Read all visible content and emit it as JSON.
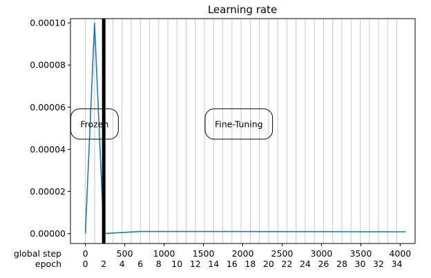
{
  "chart_data": {
    "type": "line",
    "title": "Learning rate",
    "xlabel": "",
    "ylabel": "",
    "x_tick_row_label": "global step",
    "epoch_row_label": "epoch",
    "xlim": [
      -190,
      4190
    ],
    "ylim": [
      -4.7e-06,
      0.000102
    ],
    "x_ticks": [
      0,
      500,
      1000,
      1500,
      2000,
      2500,
      3000,
      3500,
      4000
    ],
    "y_ticks": [
      0,
      2e-05,
      4e-05,
      6e-05,
      8e-05,
      0.0001
    ],
    "y_tick_labels": [
      "0.00000",
      "0.00002",
      "0.00004",
      "0.00006",
      "0.00008",
      "0.00010"
    ],
    "epoch_ticks": [
      0,
      2,
      4,
      6,
      8,
      10,
      12,
      14,
      16,
      18,
      20,
      22,
      24,
      26,
      28,
      30,
      32,
      34
    ],
    "steps_per_epoch": 116.4,
    "grid": "vertical lines at epoch boundaries",
    "series": [
      {
        "x": [
          0,
          116,
          233,
          466,
          700,
          1500,
          2500,
          3500,
          4070
        ],
        "y": [
          0,
          0.0001,
          0,
          5e-07,
          1e-06,
          1e-06,
          9.5e-07,
          9e-07,
          8.5e-07
        ],
        "color": "#1f77b4"
      }
    ],
    "phase_boundary_step": 233,
    "annotations": [
      {
        "text": "Frozen",
        "x": 116,
        "y": 5.2e-05
      },
      {
        "text": "Fine-Tuning",
        "x": 1950,
        "y": 5.2e-05
      }
    ]
  }
}
